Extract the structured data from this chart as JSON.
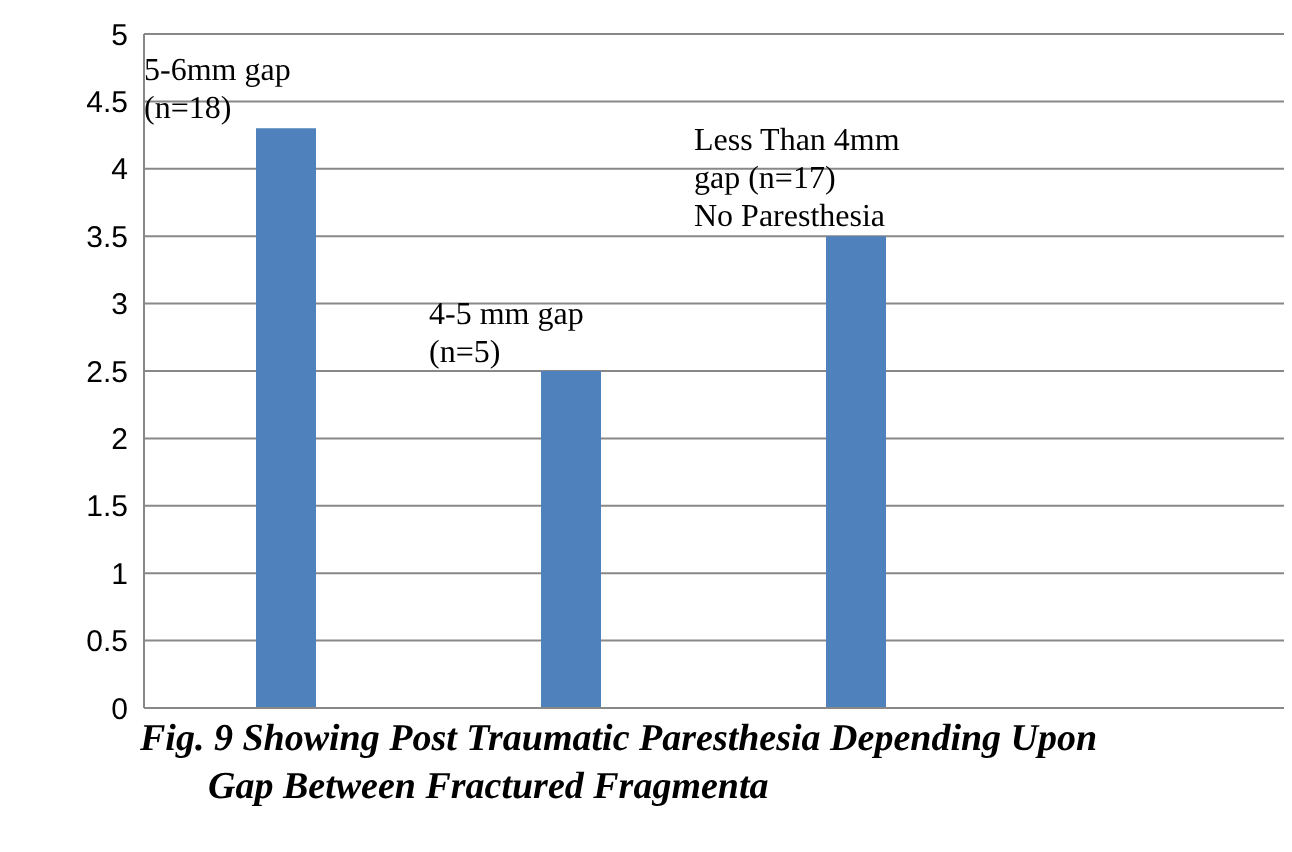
{
  "chart_data": {
    "type": "bar",
    "title": "Fig. 9 Showing Post Traumatic Paresthesia Depending Upon Gap Between Fractured Fragmenta",
    "categories": [
      null,
      null,
      null,
      null
    ],
    "values": [
      4.3,
      2.5,
      3.5,
      null
    ],
    "color": "#4f81bd",
    "ylim": [
      0,
      5
    ],
    "yticks": [
      0,
      0.5,
      1,
      1.5,
      2,
      2.5,
      3,
      3.5,
      4,
      4.5,
      5
    ],
    "grid": "y",
    "annotations": [
      "5-6mm gap\n(n=18)",
      "4-5 mm gap\n(n=5)",
      "Less Than 4mm\ngap (n=17)\nNo Paresthesia"
    ]
  }
}
